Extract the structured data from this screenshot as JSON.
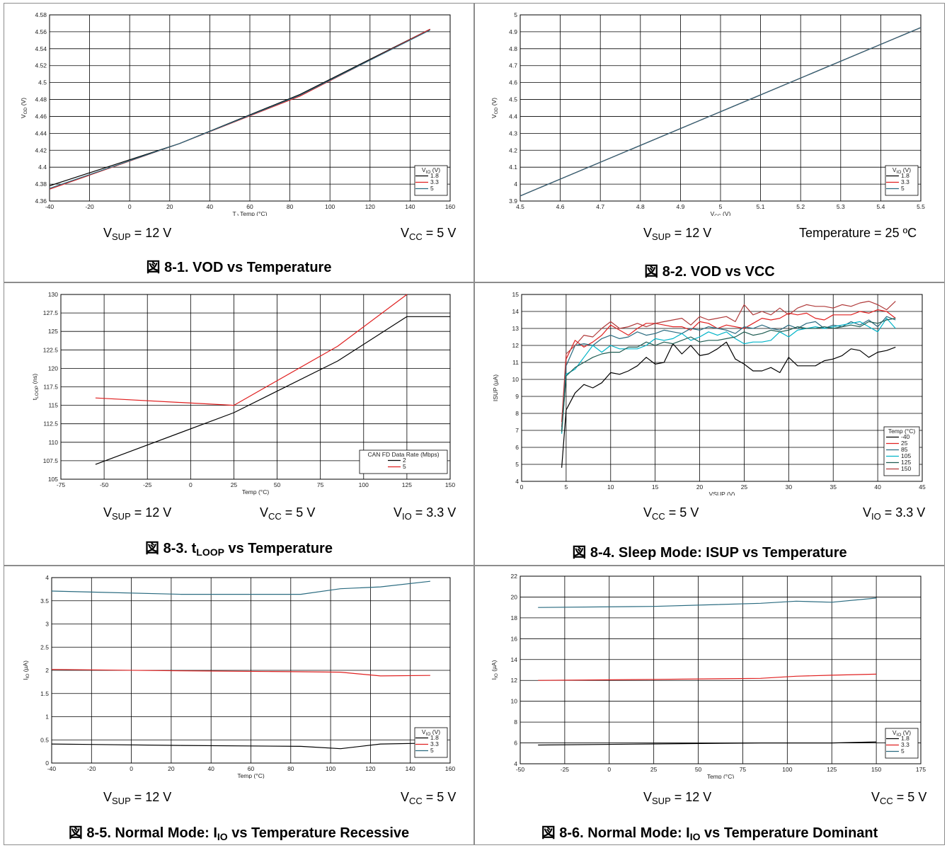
{
  "chart_data": [
    {
      "id": "c1",
      "type": "line",
      "title": "図 8-1. VOD vs Temperature",
      "xlabel": "TJ Temp (°C)",
      "ylabel": "VOD (V)",
      "xlim": [
        -40,
        160
      ],
      "ylim": [
        4.36,
        4.58
      ],
      "xticks": [
        -40,
        -20,
        0,
        20,
        40,
        60,
        80,
        100,
        120,
        140,
        160
      ],
      "yticks": [
        4.36,
        4.38,
        4.4,
        4.42,
        4.44,
        4.46,
        4.48,
        4.5,
        4.52,
        4.54,
        4.56,
        4.58
      ],
      "legend_title": "VIO (V)",
      "legend_position": "bottom-right",
      "grid": true,
      "series": [
        {
          "name": "1.8",
          "color": "#000000",
          "x": [
            -40,
            25,
            85,
            150
          ],
          "y": [
            4.378,
            4.428,
            4.486,
            4.563
          ]
        },
        {
          "name": "3.3",
          "color": "#e02020",
          "x": [
            -40,
            25,
            85,
            150
          ],
          "y": [
            4.374,
            4.428,
            4.484,
            4.563
          ]
        },
        {
          "name": "5",
          "color": "#2a6b80",
          "x": [
            -40,
            25,
            85,
            150
          ],
          "y": [
            4.375,
            4.428,
            4.485,
            4.562
          ]
        }
      ],
      "conditions": [
        {
          "main": "V",
          "sub": "SUP",
          "rest": " = 12 V"
        },
        {
          "main": "V",
          "sub": "CC",
          "rest": " = 5 V"
        }
      ]
    },
    {
      "id": "c2",
      "type": "line",
      "title": "図 8-2. VOD vs VCC",
      "xlabel": "VCC (V)",
      "ylabel": "VOD (V)",
      "xlim": [
        4.5,
        5.5
      ],
      "ylim": [
        3.9,
        5
      ],
      "xticks": [
        4.5,
        4.6,
        4.7,
        4.8,
        4.9,
        5,
        5.1,
        5.2,
        5.3,
        5.4,
        5.5
      ],
      "yticks": [
        3.9,
        4,
        4.1,
        4.2,
        4.3,
        4.4,
        4.5,
        4.6,
        4.7,
        4.8,
        4.9,
        5
      ],
      "legend_title": "VIO (V)",
      "legend_position": "bottom-right",
      "grid": true,
      "series": [
        {
          "name": "1.8",
          "color": "#000000",
          "x": [
            4.5,
            5.5
          ],
          "y": [
            3.93,
            4.925
          ]
        },
        {
          "name": "3.3",
          "color": "#e02020",
          "x": [
            4.5,
            5.5
          ],
          "y": [
            3.93,
            4.925
          ]
        },
        {
          "name": "5",
          "color": "#2a6b80",
          "x": [
            4.5,
            5.5
          ],
          "y": [
            3.93,
            4.925
          ]
        }
      ],
      "conditions": [
        {
          "main": "V",
          "sub": "SUP",
          "rest": " = 12 V"
        },
        {
          "main": "Temperature = 25 ºC",
          "sub": "",
          "rest": ""
        }
      ]
    },
    {
      "id": "c3",
      "type": "line",
      "title": "図 8-3. tLOOP vs Temperature",
      "xlabel": "Temp (°C)",
      "ylabel": "tLOOP (ns)",
      "xlim": [
        -75,
        150
      ],
      "ylim": [
        105,
        130
      ],
      "xticks": [
        -75,
        -50,
        -25,
        0,
        25,
        50,
        75,
        100,
        125,
        150
      ],
      "yticks": [
        105,
        107.5,
        110,
        112.5,
        115,
        117.5,
        120,
        122.5,
        125,
        127.5,
        130
      ],
      "legend_title": "CAN FD Data Rate (Mbps)",
      "legend_position": "bottom-right",
      "grid": true,
      "series": [
        {
          "name": "2",
          "color": "#000000",
          "x": [
            -55,
            25,
            85,
            125,
            150
          ],
          "y": [
            107,
            114,
            121,
            127,
            127
          ]
        },
        {
          "name": "5",
          "color": "#e02020",
          "x": [
            -55,
            25,
            85,
            125
          ],
          "y": [
            116,
            115,
            123,
            130
          ]
        }
      ],
      "conditions": [
        {
          "main": "V",
          "sub": "SUP",
          "rest": " = 12 V"
        },
        {
          "main": "V",
          "sub": "CC",
          "rest": " = 5 V"
        },
        {
          "main": "V",
          "sub": "IO",
          "rest": " = 3.3 V"
        }
      ]
    },
    {
      "id": "c4",
      "type": "line",
      "title": "図 8-4. Sleep Mode: ISUP vs Temperature",
      "xlabel": "VSUP (V)",
      "ylabel": "ISUP (µA)",
      "xlim": [
        0,
        45
      ],
      "ylim": [
        4,
        15
      ],
      "xticks": [
        0,
        5,
        10,
        15,
        20,
        25,
        30,
        35,
        40,
        45
      ],
      "yticks": [
        4,
        5,
        6,
        7,
        8,
        9,
        10,
        11,
        12,
        13,
        14,
        15
      ],
      "legend_title": "Temp (°C)",
      "legend_position": "bottom-right",
      "grid": true,
      "series": [
        {
          "name": "-40",
          "color": "#000000",
          "x": [
            4.5,
            5,
            6,
            7,
            8,
            9,
            10,
            11,
            12,
            13,
            14,
            15,
            16,
            17,
            18,
            19,
            20,
            21,
            22,
            23,
            24,
            25,
            26,
            27,
            28,
            29,
            30,
            31,
            32,
            33,
            34,
            35,
            36,
            37,
            38,
            39,
            40,
            41,
            42
          ],
          "y": [
            4.8,
            8.2,
            9.2,
            9.7,
            9.5,
            9.8,
            10.4,
            10.3,
            10.5,
            10.8,
            11.3,
            10.9,
            11.0,
            12.1,
            11.5,
            12.0,
            11.4,
            11.5,
            11.8,
            12.2,
            11.2,
            10.9,
            10.5,
            10.5,
            10.7,
            10.4,
            11.3,
            10.8,
            10.8,
            10.8,
            11.1,
            11.2,
            11.4,
            11.8,
            11.7,
            11.3,
            11.6,
            11.7,
            11.9
          ]
        },
        {
          "name": "25",
          "color": "#e02020",
          "x": [
            4.5,
            5,
            6,
            7,
            8,
            9,
            10,
            11,
            12,
            13,
            14,
            15,
            16,
            17,
            18,
            19,
            20,
            21,
            22,
            23,
            24,
            25,
            26,
            27,
            28,
            29,
            30,
            31,
            32,
            33,
            34,
            35,
            36,
            37,
            38,
            39,
            40,
            41,
            42
          ],
          "y": [
            7.2,
            11.2,
            12.3,
            11.9,
            12.2,
            12.6,
            13.2,
            12.9,
            12.6,
            13.0,
            13.3,
            13.3,
            13.2,
            13.1,
            13.1,
            12.9,
            13.4,
            13.3,
            13.0,
            13.2,
            13.1,
            13.0,
            13.3,
            13.6,
            13.5,
            13.6,
            13.9,
            13.8,
            13.9,
            13.6,
            13.5,
            13.8,
            13.8,
            13.8,
            14.0,
            13.9,
            14.1,
            14.0,
            13.6
          ]
        },
        {
          "name": "85",
          "color": "#2a6b80",
          "x": [
            4.5,
            5,
            6,
            7,
            8,
            9,
            10,
            11,
            12,
            13,
            14,
            15,
            16,
            17,
            18,
            19,
            20,
            21,
            22,
            23,
            24,
            25,
            26,
            27,
            28,
            29,
            30,
            31,
            32,
            33,
            34,
            35,
            36,
            37,
            38,
            39,
            40,
            41,
            42
          ],
          "y": [
            7.0,
            10.8,
            12.0,
            12.1,
            12.0,
            12.4,
            12.6,
            12.4,
            12.5,
            12.8,
            12.6,
            12.7,
            12.9,
            12.8,
            12.7,
            13.0,
            12.9,
            13.1,
            13.0,
            12.9,
            12.7,
            13.1,
            13.0,
            13.2,
            13.0,
            12.9,
            13.2,
            13.0,
            13.3,
            13.4,
            13.0,
            13.2,
            13.1,
            13.4,
            13.2,
            13.5,
            13.1,
            13.7,
            13.5
          ]
        },
        {
          "name": "105",
          "color": "#00b4c8",
          "x": [
            4.5,
            5,
            6,
            7,
            8,
            9,
            10,
            11,
            12,
            13,
            14,
            15,
            16,
            17,
            18,
            19,
            20,
            21,
            22,
            23,
            24,
            25,
            26,
            27,
            28,
            29,
            30,
            31,
            32,
            33,
            34,
            35,
            36,
            37,
            38,
            39,
            40,
            41,
            42
          ],
          "y": [
            6.8,
            10.3,
            10.6,
            11.3,
            12.0,
            11.6,
            12.0,
            11.8,
            11.8,
            11.8,
            12.0,
            12.4,
            12.3,
            12.4,
            12.7,
            12.3,
            12.5,
            12.8,
            12.6,
            12.8,
            12.4,
            12.1,
            12.2,
            12.2,
            12.3,
            12.8,
            12.5,
            12.9,
            13.0,
            13.1,
            13.0,
            13.1,
            13.2,
            13.3,
            13.4,
            13.1,
            12.8,
            13.6,
            13.0
          ]
        },
        {
          "name": "125",
          "color": "#1f5c52",
          "x": [
            4.5,
            5,
            6,
            7,
            8,
            9,
            10,
            11,
            12,
            13,
            14,
            15,
            16,
            17,
            18,
            19,
            20,
            21,
            22,
            23,
            24,
            25,
            26,
            27,
            28,
            29,
            30,
            31,
            32,
            33,
            34,
            35,
            36,
            37,
            38,
            39,
            40,
            41,
            42
          ],
          "y": [
            6.9,
            10.2,
            10.7,
            11.0,
            11.3,
            11.5,
            11.6,
            11.6,
            11.9,
            11.9,
            12.2,
            12.0,
            12.2,
            12.1,
            12.3,
            12.5,
            12.2,
            12.3,
            12.3,
            12.4,
            12.5,
            12.8,
            12.6,
            12.7,
            12.9,
            12.8,
            12.9,
            13.1,
            13.0,
            13.0,
            13.1,
            13.0,
            13.1,
            13.2,
            13.1,
            13.4,
            13.3,
            13.5,
            13.6
          ]
        },
        {
          "name": "150",
          "color": "#b03a3a",
          "x": [
            4.5,
            5,
            6,
            7,
            8,
            9,
            10,
            11,
            12,
            13,
            14,
            15,
            16,
            17,
            18,
            19,
            20,
            21,
            22,
            23,
            24,
            25,
            26,
            27,
            28,
            29,
            30,
            31,
            32,
            33,
            34,
            35,
            36,
            37,
            38,
            39,
            40,
            41,
            42
          ],
          "y": [
            7.5,
            11.5,
            12.0,
            12.6,
            12.5,
            13.0,
            13.4,
            13.0,
            13.1,
            13.3,
            13.1,
            13.3,
            13.4,
            13.5,
            13.6,
            13.2,
            13.7,
            13.5,
            13.6,
            13.7,
            13.4,
            14.4,
            13.8,
            14.0,
            13.8,
            14.2,
            13.8,
            14.2,
            14.4,
            14.3,
            14.3,
            14.2,
            14.4,
            14.3,
            14.5,
            14.6,
            14.4,
            14.1,
            14.6
          ]
        }
      ],
      "conditions": [
        {
          "main": "V",
          "sub": "CC",
          "rest": " = 5 V"
        },
        {
          "main": "V",
          "sub": "IO",
          "rest": " = 3.3 V"
        }
      ]
    },
    {
      "id": "c5",
      "type": "line",
      "title": "図 8-5. Normal Mode: IIO vs Temperature Recessive",
      "xlabel": "Temp (°C)",
      "ylabel": "IIO (µA)",
      "xlim": [
        -40,
        160
      ],
      "ylim": [
        0,
        4
      ],
      "xticks": [
        -40,
        -20,
        0,
        20,
        40,
        60,
        80,
        100,
        120,
        140,
        160
      ],
      "yticks": [
        0,
        0.5,
        1,
        1.5,
        2,
        2.5,
        3,
        3.5,
        4
      ],
      "legend_title": "VIO (V)",
      "legend_position": "bottom-right",
      "grid": true,
      "series": [
        {
          "name": "1.8",
          "color": "#000000",
          "x": [
            -40,
            25,
            85,
            105,
            125,
            150
          ],
          "y": [
            0.41,
            0.38,
            0.36,
            0.31,
            0.41,
            0.43
          ]
        },
        {
          "name": "3.3",
          "color": "#e02020",
          "x": [
            -40,
            25,
            85,
            105,
            125,
            150
          ],
          "y": [
            2.02,
            1.99,
            1.97,
            1.96,
            1.88,
            1.89
          ]
        },
        {
          "name": "5",
          "color": "#2a6b80",
          "x": [
            -40,
            25,
            85,
            105,
            125,
            150
          ],
          "y": [
            3.71,
            3.64,
            3.64,
            3.76,
            3.8,
            3.92
          ]
        }
      ],
      "conditions": [
        {
          "main": "V",
          "sub": "SUP",
          "rest": " = 12 V"
        },
        {
          "main": "V",
          "sub": "CC",
          "rest": " = 5 V"
        }
      ]
    },
    {
      "id": "c6",
      "type": "line",
      "title": "図 8-6. Normal Mode: IIO vs Temperature Dominant",
      "xlabel": "Temp (°C)",
      "ylabel": "IIO (µA)",
      "xlim": [
        -50,
        175
      ],
      "ylim": [
        4,
        22
      ],
      "xticks": [
        -50,
        -25,
        0,
        25,
        50,
        75,
        100,
        125,
        150,
        175
      ],
      "yticks": [
        4,
        6,
        8,
        10,
        12,
        14,
        16,
        18,
        20,
        22
      ],
      "legend_title": "VIO (V)",
      "legend_position": "bottom-right",
      "grid": true,
      "series": [
        {
          "name": "1.8",
          "color": "#000000",
          "x": [
            -40,
            25,
            85,
            105,
            125,
            150
          ],
          "y": [
            5.8,
            5.9,
            6.0,
            6.0,
            6.0,
            6.1
          ]
        },
        {
          "name": "3.3",
          "color": "#e02020",
          "x": [
            -40,
            25,
            85,
            105,
            125,
            150
          ],
          "y": [
            12.0,
            12.1,
            12.2,
            12.4,
            12.5,
            12.6
          ]
        },
        {
          "name": "5",
          "color": "#2a6b80",
          "x": [
            -40,
            25,
            85,
            105,
            125,
            150
          ],
          "y": [
            19.0,
            19.1,
            19.4,
            19.6,
            19.5,
            19.9
          ]
        }
      ],
      "conditions": [
        {
          "main": "V",
          "sub": "SUP",
          "rest": " = 12 V"
        },
        {
          "main": "V",
          "sub": "CC",
          "rest": " = 5 V"
        }
      ]
    }
  ],
  "captions": [
    {
      "prefix": "図 8-1. VOD vs Temperature",
      "sub": "",
      "suffix": ""
    },
    {
      "prefix": "図 8-2. VOD vs VCC",
      "sub": "",
      "suffix": ""
    },
    {
      "prefix": "図 8-3. t",
      "sub": "LOOP",
      "suffix": " vs Temperature"
    },
    {
      "prefix": "図 8-4. Sleep Mode: ISUP vs Temperature",
      "sub": "",
      "suffix": ""
    },
    {
      "prefix": "図 8-5. Normal Mode: I",
      "sub": "IO",
      "suffix": " vs Temperature Recessive"
    },
    {
      "prefix": "図 8-6. Normal Mode: I",
      "sub": "IO",
      "suffix": " vs Temperature Dominant"
    }
  ]
}
